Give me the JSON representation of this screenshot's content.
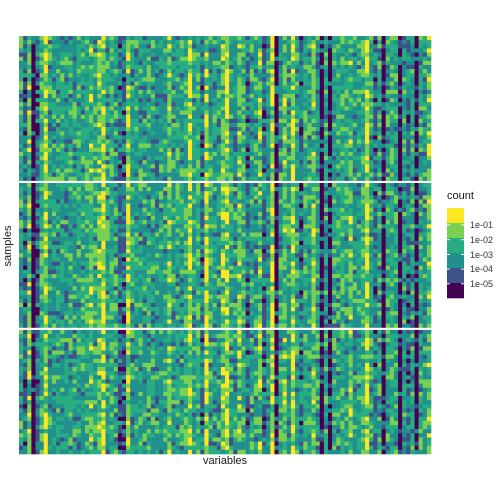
{
  "chart_data": {
    "type": "heatmap",
    "xlabel": "variables",
    "ylabel": "samples",
    "n_columns": 100,
    "n_rows": 100,
    "row_groups": [
      35,
      35,
      30
    ],
    "color_scale": {
      "scale": "log10",
      "palette": [
        "#440154",
        "#3b528b",
        "#21908c",
        "#27ad81",
        "#7ad151",
        "#fde725"
      ]
    },
    "column_profiles": [
      {
        "columns": [
          3,
          62,
          73,
          75,
          88,
          92,
          96
        ],
        "tone": "dark"
      },
      {
        "columns": [
          1,
          4,
          24,
          25,
          44,
          55,
          59,
          68,
          86,
          94
        ],
        "tone": "dark-blue"
      },
      {
        "columns": [
          7,
          8,
          11,
          13,
          30,
          33,
          34,
          37,
          48,
          52,
          57,
          60,
          65,
          81,
          98
        ],
        "tone": "teal"
      },
      {
        "columns": [
          5,
          16,
          22,
          40,
          43,
          54,
          69,
          78,
          83,
          90
        ],
        "tone": "green"
      },
      {
        "columns": [
          2,
          17,
          19,
          36,
          49,
          53,
          58,
          64,
          71,
          80,
          99
        ],
        "tone": "light-green"
      },
      {
        "columns": [
          6,
          20,
          26,
          41,
          45,
          50,
          61,
          66,
          84
        ],
        "tone": "yellow"
      }
    ]
  },
  "legend": {
    "title": "count",
    "entries": [
      "1e-01",
      "1e-02",
      "1e-03",
      "1e-04",
      "1e-05"
    ]
  }
}
